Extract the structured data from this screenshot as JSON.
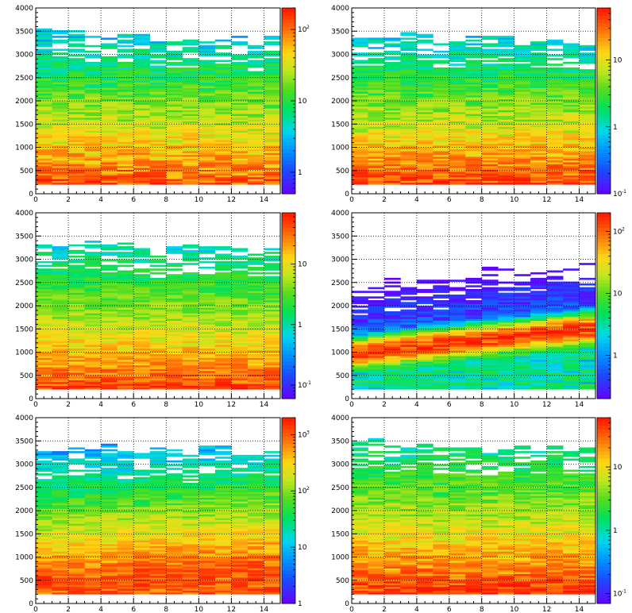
{
  "chart_data": [
    {
      "type": "heatmap",
      "xlim": [
        0,
        15
      ],
      "ylim": [
        0,
        4000
      ],
      "xticks": [
        "0",
        "2",
        "4",
        "6",
        "8",
        "10",
        "12",
        "14"
      ],
      "yticks": [
        "0",
        "500",
        "1000",
        "1500",
        "2000",
        "2500",
        "3000",
        "3500",
        "4000"
      ],
      "grid": true,
      "z_scale": "log",
      "z_range": [
        0.5,
        200
      ],
      "z_tick_labels": [
        {
          "base": "10",
          "exp": "2",
          "value": 100
        },
        {
          "base": "10",
          "exp": "",
          "value": 10
        },
        {
          "base": "1",
          "exp": "",
          "value": 1
        }
      ],
      "profile": {
        "band_y_start": 200,
        "band_y_end": 200,
        "band_width": 800,
        "band_peak": 120,
        "tail_peak": 18,
        "tail_decay": 1400,
        "top_start": 3500,
        "top_end": 3300
      }
    },
    {
      "type": "heatmap",
      "xlim": [
        0,
        15
      ],
      "ylim": [
        0,
        4000
      ],
      "xticks": [
        "0",
        "2",
        "4",
        "6",
        "8",
        "10",
        "12",
        "14"
      ],
      "yticks": [
        "0",
        "500",
        "1000",
        "1500",
        "2000",
        "2500",
        "3000",
        "3500",
        "4000"
      ],
      "grid": true,
      "z_scale": "log",
      "z_range": [
        0.1,
        60
      ],
      "z_tick_labels": [
        {
          "base": "10",
          "exp": "",
          "value": 10
        },
        {
          "base": "1",
          "exp": "",
          "value": 1
        },
        {
          "base": "10",
          "exp": "-1",
          "value": 0.1
        }
      ],
      "profile": {
        "band_y_start": 200,
        "band_y_end": 200,
        "band_width": 700,
        "band_peak": 40,
        "tail_peak": 6,
        "tail_decay": 1300,
        "top_start": 3450,
        "top_end": 3200
      }
    },
    {
      "type": "heatmap",
      "xlim": [
        0,
        15
      ],
      "ylim": [
        0,
        4000
      ],
      "xticks": [
        "0",
        "2",
        "4",
        "6",
        "8",
        "10",
        "12",
        "14"
      ],
      "yticks": [
        "0",
        "500",
        "1000",
        "1500",
        "2000",
        "2500",
        "3000",
        "3500",
        "4000"
      ],
      "grid": true,
      "z_scale": "log",
      "z_range": [
        0.06,
        70
      ],
      "z_tick_labels": [
        {
          "base": "10",
          "exp": "",
          "value": 10
        },
        {
          "base": "1",
          "exp": "",
          "value": 1
        },
        {
          "base": "10",
          "exp": "-1",
          "value": 0.1
        }
      ],
      "profile": {
        "band_y_start": 200,
        "band_y_end": 200,
        "band_width": 650,
        "band_peak": 45,
        "tail_peak": 6,
        "tail_decay": 1300,
        "top_start": 3350,
        "top_end": 3150
      }
    },
    {
      "type": "heatmap",
      "xlim": [
        0,
        15
      ],
      "ylim": [
        0,
        4000
      ],
      "xticks": [
        "0",
        "2",
        "4",
        "6",
        "8",
        "10",
        "12",
        "14"
      ],
      "yticks": [
        "0",
        "500",
        "1000",
        "1500",
        "2000",
        "2500",
        "3000",
        "3500",
        "4000"
      ],
      "grid": true,
      "z_scale": "log",
      "z_range": [
        0.2,
        200
      ],
      "z_tick_labels": [
        {
          "base": "10",
          "exp": "2",
          "value": 100
        },
        {
          "base": "10",
          "exp": "",
          "value": 10
        },
        {
          "base": "1",
          "exp": "",
          "value": 1
        }
      ],
      "profile": {
        "band_y_start": 950,
        "band_y_end": 1500,
        "band_width": 130,
        "band_peak": 150,
        "tail_peak": 1.2,
        "tail_decay": 700,
        "top_start": 3300,
        "top_end": 3100,
        "below_level": 4
      }
    },
    {
      "type": "heatmap",
      "xlim": [
        0,
        15
      ],
      "ylim": [
        0,
        4000
      ],
      "xticks": [
        "0",
        "2",
        "4",
        "6",
        "8",
        "10",
        "12",
        "14"
      ],
      "yticks": [
        "0",
        "500",
        "1000",
        "1500",
        "2000",
        "2500",
        "3000",
        "3500",
        "4000"
      ],
      "grid": true,
      "z_scale": "log",
      "z_range": [
        1,
        2000
      ],
      "z_tick_labels": [
        {
          "base": "10",
          "exp": "3",
          "value": 1000
        },
        {
          "base": "10",
          "exp": "2",
          "value": 100
        },
        {
          "base": "10",
          "exp": "",
          "value": 10
        },
        {
          "base": "1",
          "exp": "",
          "value": 1
        }
      ],
      "profile": {
        "band_y_start": 550,
        "band_y_end": 850,
        "band_width": 550,
        "band_peak": 1100,
        "tail_peak": 25,
        "tail_decay": 500,
        "top_start": 3350,
        "top_end": 3250,
        "floor": 1.5
      }
    },
    {
      "type": "heatmap",
      "xlim": [
        0,
        15
      ],
      "ylim": [
        0,
        4000
      ],
      "xticks": [
        "0",
        "2",
        "4",
        "6",
        "8",
        "10",
        "12",
        "14"
      ],
      "yticks": [
        "0",
        "500",
        "1000",
        "1500",
        "2000",
        "2500",
        "3000",
        "3500",
        "4000"
      ],
      "grid": true,
      "z_scale": "log",
      "z_range": [
        0.07,
        60
      ],
      "z_tick_labels": [
        {
          "base": "10",
          "exp": "",
          "value": 10
        },
        {
          "base": "1",
          "exp": "",
          "value": 1
        },
        {
          "base": "10",
          "exp": "-1",
          "value": 0.1
        }
      ],
      "profile": {
        "band_y_start": 200,
        "band_y_end": 200,
        "band_width": 700,
        "band_peak": 45,
        "tail_peak": 7,
        "tail_decay": 1500,
        "top_start": 3500,
        "top_end": 3300
      }
    }
  ]
}
